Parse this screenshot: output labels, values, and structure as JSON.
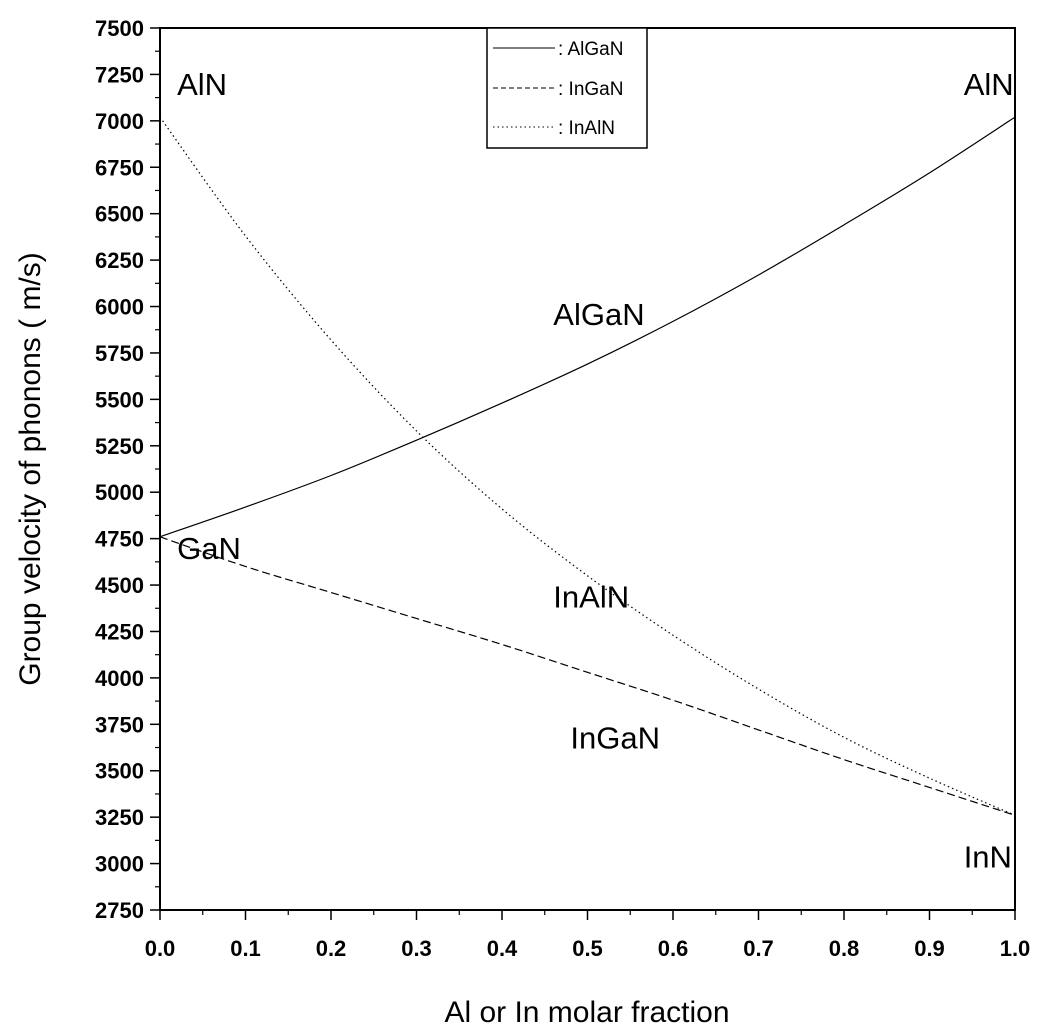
{
  "chart_data": {
    "type": "line",
    "xlabel": "Al or In molar fraction",
    "ylabel": "Group velocity of phonons ( m/s)",
    "xlim": [
      0.0,
      1.0
    ],
    "ylim": [
      2750,
      7500
    ],
    "x_ticks": [
      "0.0",
      "0.1",
      "0.2",
      "0.3",
      "0.4",
      "0.5",
      "0.6",
      "0.7",
      "0.8",
      "0.9",
      "1.0"
    ],
    "y_ticks": [
      "2750",
      "3000",
      "3250",
      "3500",
      "3750",
      "4000",
      "4250",
      "4500",
      "4750",
      "5000",
      "5250",
      "5500",
      "5750",
      "6000",
      "6250",
      "6500",
      "6750",
      "7000",
      "7250",
      "7500"
    ],
    "grid": false,
    "legend_position": "top-center",
    "x": [
      0.0,
      0.1,
      0.2,
      0.3,
      0.4,
      0.5,
      0.6,
      0.7,
      0.8,
      0.9,
      1.0
    ],
    "series": [
      {
        "name": ": AlGaN",
        "style": "solid",
        "values": [
          4760,
          4920,
          5090,
          5280,
          5480,
          5690,
          5920,
          6170,
          6440,
          6720,
          7020
        ]
      },
      {
        "name": ": InGaN",
        "style": "dashed",
        "values": [
          4760,
          4600,
          4460,
          4320,
          4180,
          4030,
          3880,
          3720,
          3560,
          3410,
          3260
        ]
      },
      {
        "name": ": InAlN",
        "style": "dotted",
        "values": [
          7020,
          6380,
          5820,
          5330,
          4910,
          4550,
          4230,
          3940,
          3680,
          3460,
          3260
        ]
      }
    ],
    "annotations": [
      {
        "text": "AlN",
        "x": 0.02,
        "y": 7140
      },
      {
        "text": "AlN",
        "x": 0.94,
        "y": 7140
      },
      {
        "text": "AlGaN",
        "x": 0.46,
        "y": 5900
      },
      {
        "text": "GaN",
        "x": 0.02,
        "y": 4640
      },
      {
        "text": "InAlN",
        "x": 0.46,
        "y": 4380
      },
      {
        "text": "InGaN",
        "x": 0.48,
        "y": 3620
      },
      {
        "text": "InN",
        "x": 0.94,
        "y": 2980
      }
    ]
  }
}
